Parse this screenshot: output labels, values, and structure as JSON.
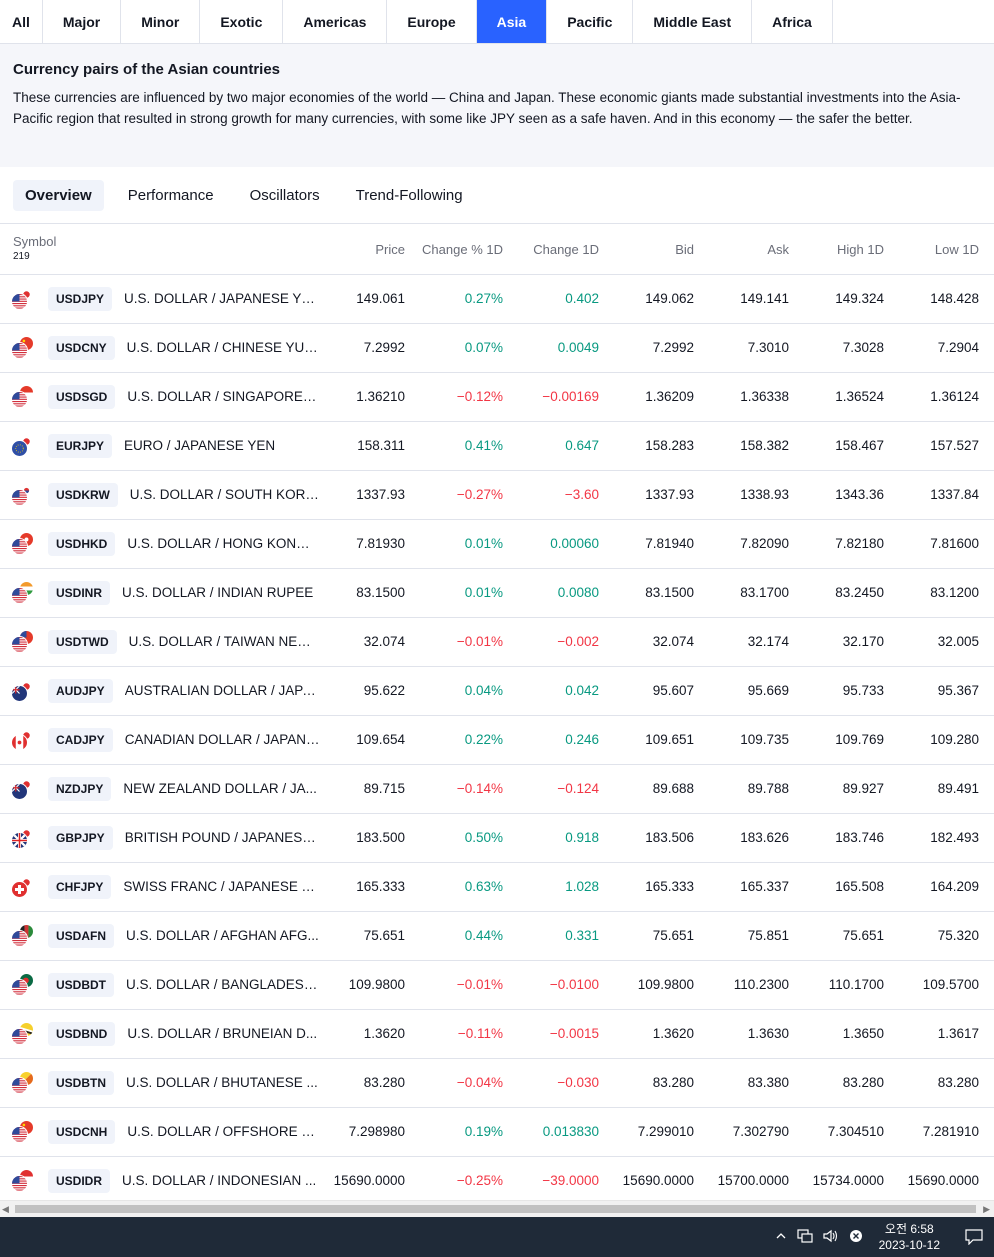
{
  "region_tabs": [
    {
      "label": "All",
      "active": false
    },
    {
      "label": "Major",
      "active": false
    },
    {
      "label": "Minor",
      "active": false
    },
    {
      "label": "Exotic",
      "active": false
    },
    {
      "label": "Americas",
      "active": false
    },
    {
      "label": "Europe",
      "active": false
    },
    {
      "label": "Asia",
      "active": true
    },
    {
      "label": "Pacific",
      "active": false
    },
    {
      "label": "Middle East",
      "active": false
    },
    {
      "label": "Africa",
      "active": false
    }
  ],
  "description": {
    "title": "Currency pairs of the Asian countries",
    "text": "These currencies are influenced by two major economies of the world — China and Japan. These economic giants made substantial investments into the Asia-Pacific region that resulted in strong growth for many currencies, with some like JPY seen as a safe haven. And in this economy — the safer the better."
  },
  "view_tabs": [
    {
      "label": "Overview",
      "active": true
    },
    {
      "label": "Performance",
      "active": false
    },
    {
      "label": "Oscillators",
      "active": false
    },
    {
      "label": "Trend-Following",
      "active": false
    }
  ],
  "table": {
    "symbol_header": "Symbol",
    "symbol_count": "219",
    "columns": [
      "Price",
      "Change % 1D",
      "Change 1D",
      "Bid",
      "Ask",
      "High 1D",
      "Low 1D"
    ],
    "rows": [
      {
        "ticker": "USDJPY",
        "name": "U.S. DOLLAR / JAPANESE YEN",
        "flag1": "us",
        "flag2": "jp",
        "price": "149.061",
        "chg_pct": "0.27%",
        "chg": "0.402",
        "dir": "pos",
        "bid": "149.062",
        "ask": "149.141",
        "high": "149.324",
        "low": "148.428"
      },
      {
        "ticker": "USDCNY",
        "name": "U.S. DOLLAR / CHINESE YUAN",
        "flag1": "us",
        "flag2": "cn",
        "price": "7.2992",
        "chg_pct": "0.07%",
        "chg": "0.0049",
        "dir": "pos",
        "bid": "7.2992",
        "ask": "7.3010",
        "high": "7.3028",
        "low": "7.2904"
      },
      {
        "ticker": "USDSGD",
        "name": "U.S. DOLLAR / SINGAPORE D...",
        "flag1": "us",
        "flag2": "sg",
        "price": "1.36210",
        "chg_pct": "−0.12%",
        "chg": "−0.00169",
        "dir": "neg",
        "bid": "1.36209",
        "ask": "1.36338",
        "high": "1.36524",
        "low": "1.36124"
      },
      {
        "ticker": "EURJPY",
        "name": "EURO / JAPANESE YEN",
        "flag1": "eu",
        "flag2": "jp",
        "price": "158.311",
        "chg_pct": "0.41%",
        "chg": "0.647",
        "dir": "pos",
        "bid": "158.283",
        "ask": "158.382",
        "high": "158.467",
        "low": "157.527"
      },
      {
        "ticker": "USDKRW",
        "name": "U.S. DOLLAR / SOUTH KORE...",
        "flag1": "us",
        "flag2": "kr",
        "price": "1337.93",
        "chg_pct": "−0.27%",
        "chg": "−3.60",
        "dir": "neg",
        "bid": "1337.93",
        "ask": "1338.93",
        "high": "1343.36",
        "low": "1337.84"
      },
      {
        "ticker": "USDHKD",
        "name": "U.S. DOLLAR / HONG KONG ...",
        "flag1": "us",
        "flag2": "hk",
        "price": "7.81930",
        "chg_pct": "0.01%",
        "chg": "0.00060",
        "dir": "pos",
        "bid": "7.81940",
        "ask": "7.82090",
        "high": "7.82180",
        "low": "7.81600"
      },
      {
        "ticker": "USDINR",
        "name": "U.S. DOLLAR / INDIAN RUPEE",
        "flag1": "us",
        "flag2": "in",
        "price": "83.1500",
        "chg_pct": "0.01%",
        "chg": "0.0080",
        "dir": "pos",
        "bid": "83.1500",
        "ask": "83.1700",
        "high": "83.2450",
        "low": "83.1200"
      },
      {
        "ticker": "USDTWD",
        "name": "U.S. DOLLAR / TAIWAN NEW...",
        "flag1": "us",
        "flag2": "tw",
        "price": "32.074",
        "chg_pct": "−0.01%",
        "chg": "−0.002",
        "dir": "neg",
        "bid": "32.074",
        "ask": "32.174",
        "high": "32.170",
        "low": "32.005"
      },
      {
        "ticker": "AUDJPY",
        "name": "AUSTRALIAN DOLLAR / JAPA...",
        "flag1": "au",
        "flag2": "jp",
        "price": "95.622",
        "chg_pct": "0.04%",
        "chg": "0.042",
        "dir": "pos",
        "bid": "95.607",
        "ask": "95.669",
        "high": "95.733",
        "low": "95.367"
      },
      {
        "ticker": "CADJPY",
        "name": "CANADIAN DOLLAR / JAPANE...",
        "flag1": "ca",
        "flag2": "jp",
        "price": "109.654",
        "chg_pct": "0.22%",
        "chg": "0.246",
        "dir": "pos",
        "bid": "109.651",
        "ask": "109.735",
        "high": "109.769",
        "low": "109.280"
      },
      {
        "ticker": "NZDJPY",
        "name": "NEW ZEALAND DOLLAR / JA...",
        "flag1": "nz",
        "flag2": "jp",
        "price": "89.715",
        "chg_pct": "−0.14%",
        "chg": "−0.124",
        "dir": "neg",
        "bid": "89.688",
        "ask": "89.788",
        "high": "89.927",
        "low": "89.491"
      },
      {
        "ticker": "GBPJPY",
        "name": "BRITISH POUND / JAPANESE ...",
        "flag1": "gb",
        "flag2": "jp",
        "price": "183.500",
        "chg_pct": "0.50%",
        "chg": "0.918",
        "dir": "pos",
        "bid": "183.506",
        "ask": "183.626",
        "high": "183.746",
        "low": "182.493"
      },
      {
        "ticker": "CHFJPY",
        "name": "SWISS FRANC / JAPANESE YEN",
        "flag1": "ch",
        "flag2": "jp",
        "price": "165.333",
        "chg_pct": "0.63%",
        "chg": "1.028",
        "dir": "pos",
        "bid": "165.333",
        "ask": "165.337",
        "high": "165.508",
        "low": "164.209"
      },
      {
        "ticker": "USDAFN",
        "name": "U.S. DOLLAR / AFGHAN AFG...",
        "flag1": "us",
        "flag2": "af",
        "price": "75.651",
        "chg_pct": "0.44%",
        "chg": "0.331",
        "dir": "pos",
        "bid": "75.651",
        "ask": "75.851",
        "high": "75.651",
        "low": "75.320"
      },
      {
        "ticker": "USDBDT",
        "name": "U.S. DOLLAR / BANGLADESH...",
        "flag1": "us",
        "flag2": "bd",
        "price": "109.9800",
        "chg_pct": "−0.01%",
        "chg": "−0.0100",
        "dir": "neg",
        "bid": "109.9800",
        "ask": "110.2300",
        "high": "110.1700",
        "low": "109.5700"
      },
      {
        "ticker": "USDBND",
        "name": "U.S. DOLLAR / BRUNEIAN D...",
        "flag1": "us",
        "flag2": "bn",
        "price": "1.3620",
        "chg_pct": "−0.11%",
        "chg": "−0.0015",
        "dir": "neg",
        "bid": "1.3620",
        "ask": "1.3630",
        "high": "1.3650",
        "low": "1.3617"
      },
      {
        "ticker": "USDBTN",
        "name": "U.S. DOLLAR / BHUTANESE ...",
        "flag1": "us",
        "flag2": "bt",
        "price": "83.280",
        "chg_pct": "−0.04%",
        "chg": "−0.030",
        "dir": "neg",
        "bid": "83.280",
        "ask": "83.380",
        "high": "83.280",
        "low": "83.280"
      },
      {
        "ticker": "USDCNH",
        "name": "U.S. DOLLAR / OFFSHORE C...",
        "flag1": "us",
        "flag2": "cn",
        "price": "7.298980",
        "chg_pct": "0.19%",
        "chg": "0.013830",
        "dir": "pos",
        "bid": "7.299010",
        "ask": "7.302790",
        "high": "7.304510",
        "low": "7.281910"
      },
      {
        "ticker": "USDIDR",
        "name": "U.S. DOLLAR / INDONESIAN ...",
        "flag1": "us",
        "flag2": "id",
        "price": "15690.0000",
        "chg_pct": "−0.25%",
        "chg": "−39.0000",
        "dir": "neg",
        "bid": "15690.0000",
        "ask": "15700.0000",
        "high": "15734.0000",
        "low": "15690.0000"
      }
    ]
  },
  "colors": {
    "positive": "#089981",
    "negative": "#f23645",
    "accent": "#2962ff"
  },
  "taskbar": {
    "time": "오전 6:58",
    "date": "2023-10-12"
  }
}
